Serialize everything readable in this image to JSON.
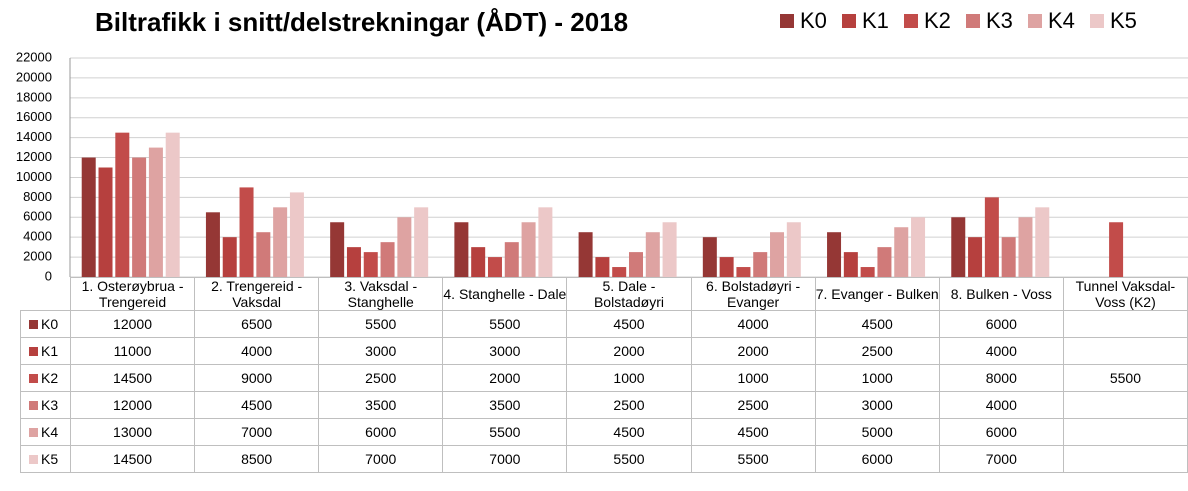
{
  "chart_data": {
    "type": "bar",
    "title": "Biltrafikk i snitt/delstrekningar (ÅDT) - 2018",
    "categories": [
      "1. Osterøybrua - Trengereid",
      "2. Trengereid - Vaksdal",
      "3. Vaksdal - Stanghelle",
      "4. Stanghelle - Dale",
      "5. Dale - Bolstadøyri",
      "6. Bolstadøyri - Evanger",
      "7. Evanger - Bulken",
      "8. Bulken - Voss",
      "Tunnel Vaksdal-Voss (K2)"
    ],
    "series": [
      {
        "name": "K0",
        "color": "#953735",
        "values": [
          12000,
          6500,
          5500,
          5500,
          4500,
          4000,
          4500,
          6000,
          null
        ]
      },
      {
        "name": "K1",
        "color": "#b6403e",
        "values": [
          11000,
          4000,
          3000,
          3000,
          2000,
          2000,
          2500,
          4000,
          null
        ]
      },
      {
        "name": "K2",
        "color": "#c24c4a",
        "values": [
          14500,
          9000,
          2500,
          2000,
          1000,
          1000,
          1000,
          8000,
          5500
        ]
      },
      {
        "name": "K3",
        "color": "#d07a79",
        "values": [
          12000,
          4500,
          3500,
          3500,
          2500,
          2500,
          3000,
          4000,
          null
        ]
      },
      {
        "name": "K4",
        "color": "#dea3a2",
        "values": [
          13000,
          7000,
          6000,
          5500,
          4500,
          4500,
          5000,
          6000,
          null
        ]
      },
      {
        "name": "K5",
        "color": "#ecc8c8",
        "values": [
          14500,
          8500,
          7000,
          7000,
          5500,
          5500,
          6000,
          7000,
          null
        ]
      }
    ],
    "ylim": [
      0,
      22000
    ],
    "yticks": [
      0,
      2000,
      4000,
      6000,
      8000,
      10000,
      12000,
      14000,
      16000,
      18000,
      20000,
      22000
    ],
    "grid": true,
    "legend": "top-right"
  }
}
